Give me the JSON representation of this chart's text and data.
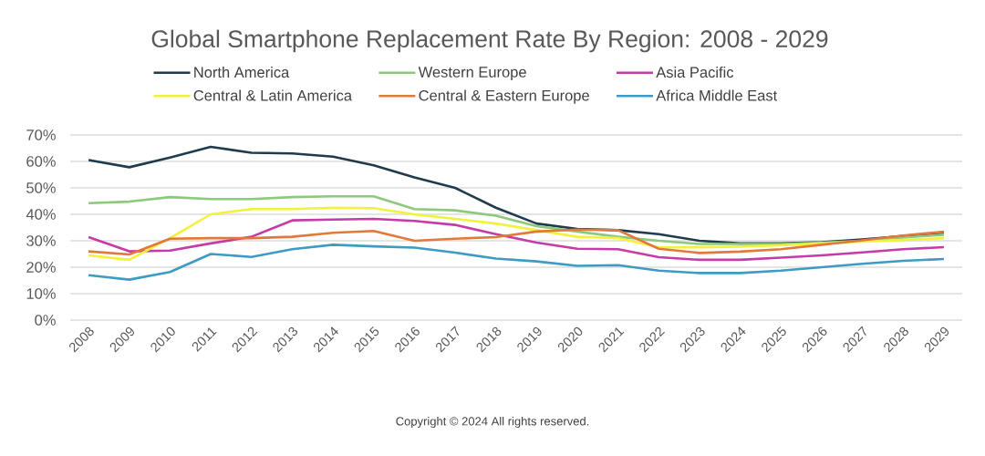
{
  "chart_data": {
    "type": "line",
    "title": "Global Smartphone Replacement Rate By Region: 2008 - 2029",
    "categories": [
      "2008",
      "2009",
      "2010",
      "2011",
      "2012",
      "2013",
      "2014",
      "2015",
      "2016",
      "2017",
      "2018",
      "2019",
      "2020",
      "2021",
      "2022",
      "2023",
      "2024",
      "2025",
      "2026",
      "2027",
      "2028",
      "2029"
    ],
    "series": [
      {
        "name": "North America",
        "color": "#1f3b4d",
        "values": [
          60.5,
          57.8,
          61.5,
          65.5,
          63.3,
          63,
          61.8,
          58.5,
          54,
          50,
          42.5,
          36.5,
          34.5,
          34,
          32.5,
          30,
          29,
          29,
          29.5,
          30.5,
          31.8,
          33
        ]
      },
      {
        "name": "Western Europe",
        "color": "#8dc97a",
        "values": [
          44.2,
          44.8,
          46.5,
          45.8,
          45.8,
          46.5,
          46.8,
          46.8,
          42,
          41.5,
          39.5,
          35.5,
          33.5,
          31.5,
          30,
          28.8,
          28.8,
          28.8,
          29.3,
          30,
          31.2,
          32.3
        ]
      },
      {
        "name": "Asia Pacific",
        "color": "#c73ba8",
        "values": [
          31.4,
          26,
          26.3,
          29,
          31.5,
          37.7,
          38,
          38.3,
          37.5,
          36,
          32.5,
          29.3,
          27,
          26.8,
          23.8,
          22.8,
          22.8,
          23.6,
          24.5,
          25.6,
          26.8,
          27.6
        ]
      },
      {
        "name": "Central & Latin America",
        "color": "#f2f23c",
        "values": [
          24.5,
          22.8,
          31,
          40,
          42,
          42,
          42.5,
          42.3,
          40,
          38.3,
          36.5,
          34,
          31.5,
          31,
          27.5,
          27.5,
          27.8,
          28.3,
          29,
          29.7,
          30.3,
          31
        ]
      },
      {
        "name": "Central & Eastern Europe",
        "color": "#e0793a",
        "values": [
          26,
          24.8,
          30.8,
          31,
          31,
          31.5,
          33,
          33.7,
          30,
          30.8,
          31.4,
          33.5,
          34.2,
          34,
          27,
          25.4,
          25.9,
          26.8,
          28.5,
          30.2,
          32,
          33.4
        ]
      },
      {
        "name": "Africa Middle East",
        "color": "#3d9cc4",
        "values": [
          17,
          15.3,
          18.2,
          25,
          23.9,
          26.8,
          28.5,
          27.9,
          27.4,
          25.5,
          23.3,
          22.2,
          20.5,
          20.8,
          18.7,
          17.8,
          17.8,
          18.7,
          20,
          21.3,
          22.4,
          23.1
        ]
      }
    ],
    "ylim": [
      0,
      70
    ],
    "yticks": [
      {
        "value": 0,
        "label": "0%"
      },
      {
        "value": 10,
        "label": "10%"
      },
      {
        "value": 20,
        "label": "20%"
      },
      {
        "value": 30,
        "label": "30%"
      },
      {
        "value": 40,
        "label": "40%"
      },
      {
        "value": 50,
        "label": "50%"
      },
      {
        "value": 60,
        "label": "60%"
      },
      {
        "value": 70,
        "label": "70%"
      }
    ],
    "grid": "y",
    "legend": "top",
    "marker": "none",
    "line_style": "solid",
    "annotations": [
      "Copyright © 2024 All rights reserved."
    ]
  }
}
